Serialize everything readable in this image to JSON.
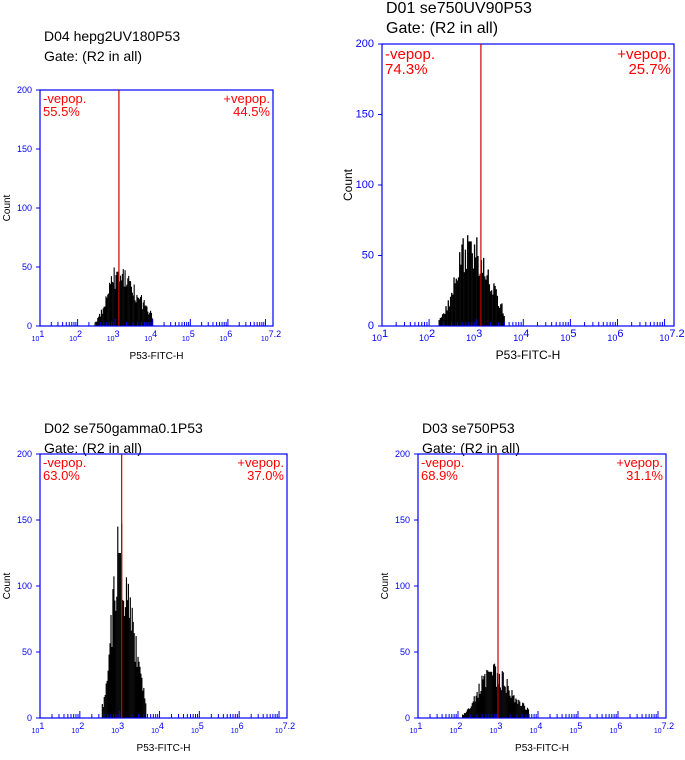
{
  "colors": {
    "axis": "#0000ff",
    "gate_text": "#ff0000",
    "gate_line": "#cc0000",
    "bars": "#000000"
  },
  "chart_data": [
    {
      "type": "bar",
      "title": "D04 hepg2UV180P53",
      "subtitle": "Gate: (R2 in all)",
      "xlabel": "P53-FITC-H",
      "ylabel": "Count",
      "x_scale": "log",
      "xlim": [
        1,
        7.2
      ],
      "ylim": [
        0,
        200
      ],
      "x_ticks": [
        "10^1",
        "10^2",
        "10^3",
        "10^4",
        "10^5",
        "10^6",
        "10^7.2"
      ],
      "y_ticks": [
        0,
        50,
        100,
        150,
        200
      ],
      "marker_x": 3.1,
      "gate_labels": {
        "neg": "-vepop.",
        "neg_pct": "55.5%",
        "pos": "+vepop.",
        "pos_pct": "44.5%"
      },
      "histogram": {
        "min": 2.45,
        "max": 4.0,
        "peak_x": 3.05,
        "peak": 46,
        "skew": 0.5
      }
    },
    {
      "type": "bar",
      "title": "D01 se750UV90P53",
      "subtitle": "Gate: (R2 in all)",
      "xlabel": "P53-FITC-H",
      "ylabel": "Count",
      "x_scale": "log",
      "xlim": [
        1,
        7.2
      ],
      "ylim": [
        0,
        200
      ],
      "x_ticks": [
        "10^1",
        "10^2",
        "10^3",
        "10^4",
        "10^5",
        "10^6",
        "10^7.2"
      ],
      "y_ticks": [
        0,
        50,
        100,
        150,
        200
      ],
      "marker_x": 3.1,
      "gate_labels": {
        "neg": "-vepop.",
        "neg_pct": "74.3%",
        "pos": "+vepop.",
        "pos_pct": "25.7%"
      },
      "histogram": {
        "min": 2.2,
        "max": 3.6,
        "peak_x": 2.85,
        "peak": 60,
        "skew": 0.4
      }
    },
    {
      "type": "bar",
      "title": "D02 se750gamma0.1P53",
      "subtitle": "Gate: (R2 in all)",
      "xlabel": "P53-FITC-H",
      "ylabel": "Count",
      "x_scale": "log",
      "xlim": [
        1,
        7.2
      ],
      "ylim": [
        0,
        200
      ],
      "x_ticks": [
        "10^1",
        "10^2",
        "10^3",
        "10^4",
        "10^5",
        "10^6",
        "10^7.2"
      ],
      "y_ticks": [
        0,
        50,
        100,
        150,
        200
      ],
      "marker_x": 3.05,
      "gate_labels": {
        "neg": "-vepop.",
        "neg_pct": "63.0%",
        "pos": "+vepop.",
        "pos_pct": "37.0%"
      },
      "histogram": {
        "min": 2.55,
        "max": 3.65,
        "peak_x": 2.98,
        "peak": 125,
        "skew": 0.2
      }
    },
    {
      "type": "bar",
      "title": "D03 se750P53",
      "subtitle": "Gate: (R2 in all)",
      "xlabel": "P53-FITC-H",
      "ylabel": "Count",
      "x_scale": "log",
      "xlim": [
        1,
        7.2
      ],
      "ylim": [
        0,
        200
      ],
      "x_ticks": [
        "10^1",
        "10^2",
        "10^3",
        "10^4",
        "10^5",
        "10^6",
        "10^7.2"
      ],
      "y_ticks": [
        0,
        50,
        100,
        150,
        200
      ],
      "marker_x": 3.0,
      "gate_labels": {
        "neg": "-vepop.",
        "neg_pct": "68.9%",
        "pos": "+vepop.",
        "pos_pct": "31.1%"
      },
      "histogram": {
        "min": 2.1,
        "max": 3.75,
        "peak_x": 2.8,
        "peak": 35,
        "skew": 0.5
      }
    }
  ]
}
